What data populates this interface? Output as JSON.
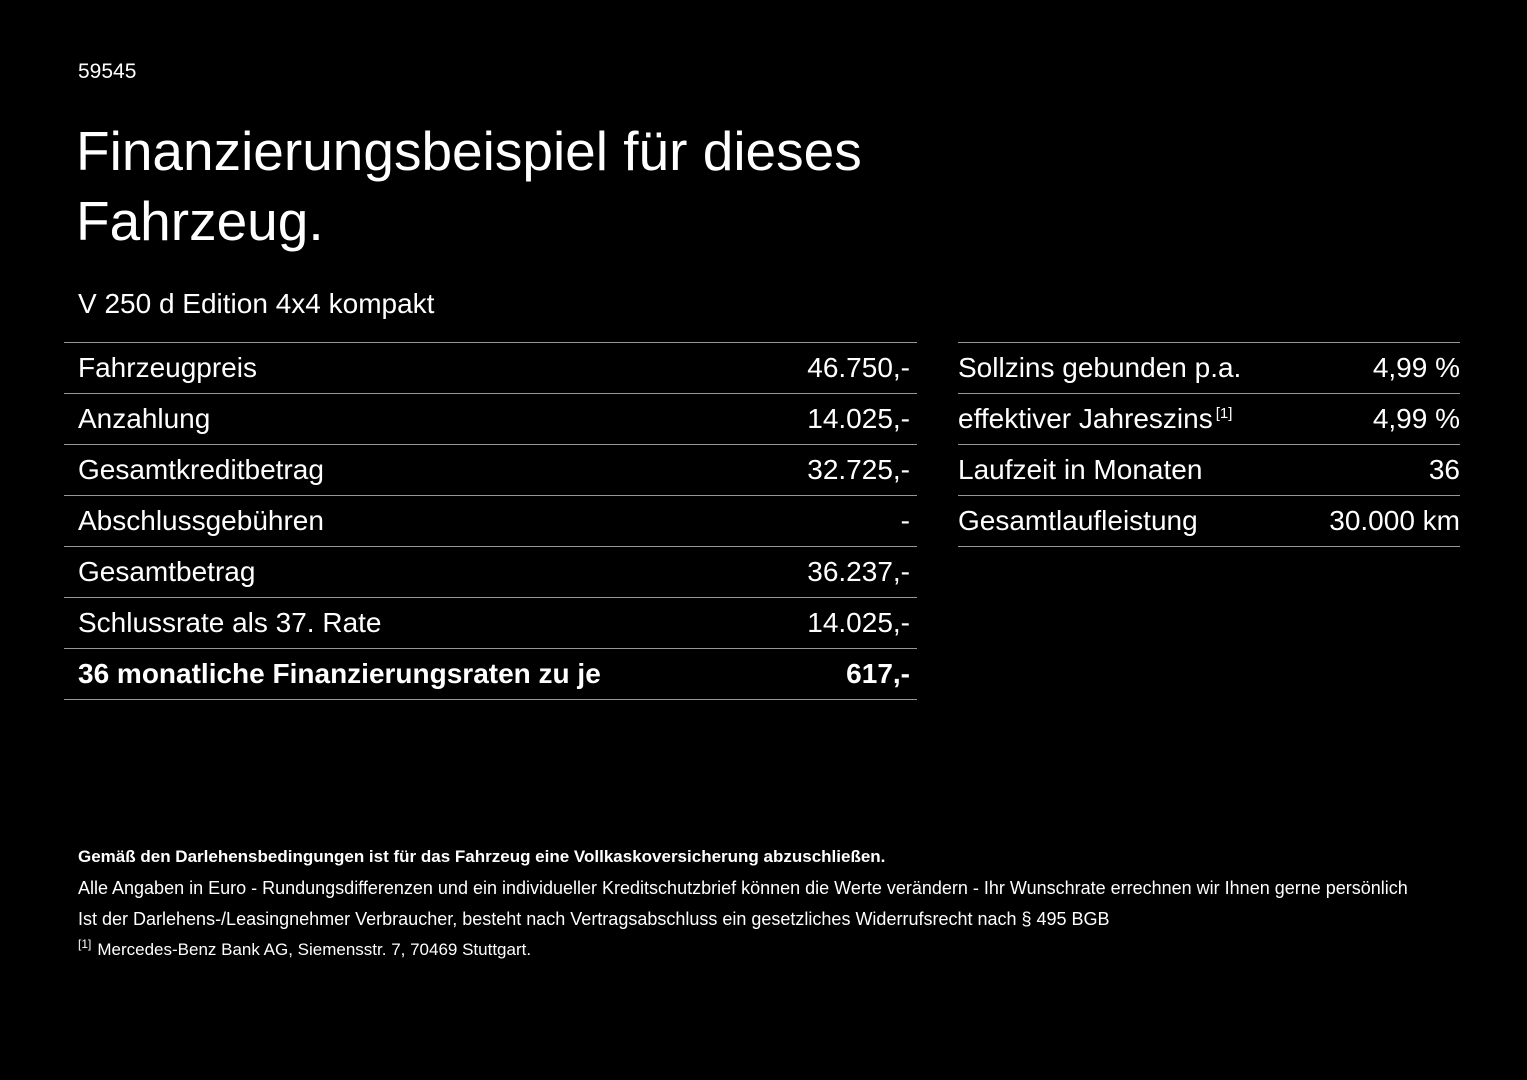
{
  "page": {
    "doc_number": "59545",
    "title_line1": "Finanzierungsbeispiel für dieses",
    "title_line2": "Fahrzeug.",
    "vehicle": "V 250 d Edition 4x4 kompakt"
  },
  "left_table": {
    "rows": [
      {
        "label": "Fahrzeugpreis",
        "value": "46.750,-"
      },
      {
        "label": "Anzahlung",
        "value": "14.025,-"
      },
      {
        "label": "Gesamtkreditbetrag",
        "value": "32.725,-"
      },
      {
        "label": "Abschlussgebühren",
        "value": "-"
      },
      {
        "label": "Gesamtbetrag",
        "value": "36.237,-"
      },
      {
        "label": "Schlussrate als 37. Rate",
        "value": "14.025,-"
      },
      {
        "label": "36 monatliche Finanzierungsraten zu je",
        "value": "617,-"
      }
    ]
  },
  "right_table": {
    "rows": [
      {
        "label": "Sollzins gebunden p.a.",
        "value": "4,99 %"
      },
      {
        "label": "effektiver Jahreszins",
        "sup": "[1]",
        "value": "4,99 %"
      },
      {
        "label": "Laufzeit in Monaten",
        "value": "36"
      },
      {
        "label": "Gesamtlaufleistung",
        "value": "30.000 km"
      }
    ]
  },
  "footer": {
    "line1": "Gemäß den Darlehensbedingungen ist für das Fahrzeug eine Vollkaskoversicherung abzuschließen.",
    "line2": "Alle Angaben in Euro - Rundungsdifferenzen und ein individueller Kreditschutzbrief können die Werte verändern - Ihr Wunschrate errechnen wir Ihnen gerne persönlich",
    "line3": "Ist der Darlehens-/Leasingnehmer Verbraucher, besteht nach Vertragsabschluss ein gesetzliches Widerrufsrecht nach § 495 BGB",
    "footnote_marker": "[1]",
    "footnote_text": "Mercedes-Benz Bank AG, Siemensstr. 7, 70469 Stuttgart."
  }
}
